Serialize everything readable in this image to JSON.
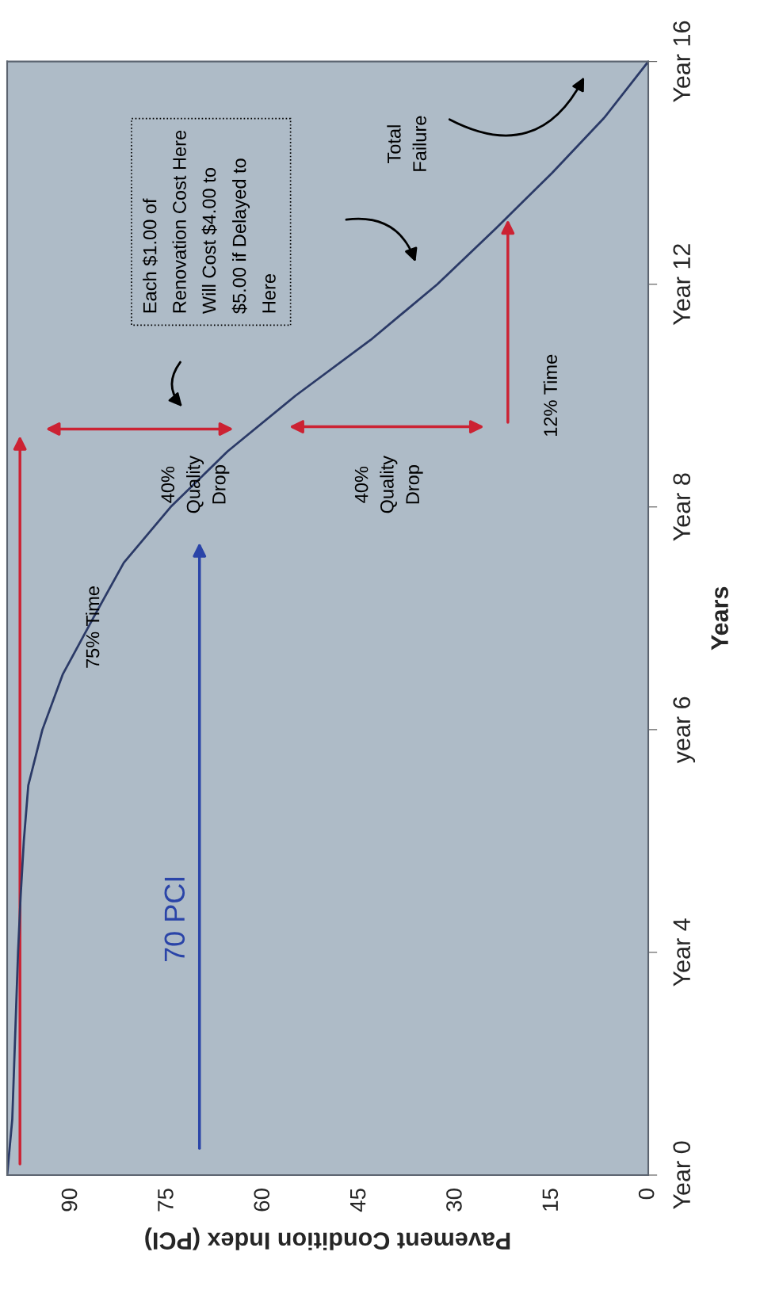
{
  "chart_data": {
    "type": "line",
    "orientation": "horizontal",
    "xlabel": "Pavement Condition Index (PCI)",
    "ylabel": "Years",
    "xlim": [
      100,
      0
    ],
    "xticks": [
      90,
      75,
      60,
      45,
      30,
      15,
      0
    ],
    "categories": [
      "Year 16",
      null,
      null,
      null,
      "Year 12",
      null,
      null,
      null,
      "Year 8",
      null,
      null,
      null,
      "year 6",
      null,
      null,
      null,
      "Year 4",
      null,
      null,
      null,
      "Year 0"
    ],
    "grid": false,
    "series": [
      {
        "color": "#2b3a67",
        "values": [
          0,
          6.8,
          15,
          23.8,
          32.9,
          43.3,
          55,
          65.6,
          74.5,
          81.8,
          86.6,
          91.3,
          94.5,
          96.7,
          97.4,
          97.9,
          98.3,
          98.6,
          98.9,
          99.2,
          100
        ]
      }
    ],
    "annotations": [
      "70 PCI",
      "75% Time",
      "40%\nQuality\nDrop",
      "40%\nQuality\nDrop",
      "12% Time",
      "Each $1.00 of\nRenovation Cost Here\nWill Cost $4.00 to\n$5.00 if Delayed to\nHere",
      "Total\nFailure"
    ]
  }
}
